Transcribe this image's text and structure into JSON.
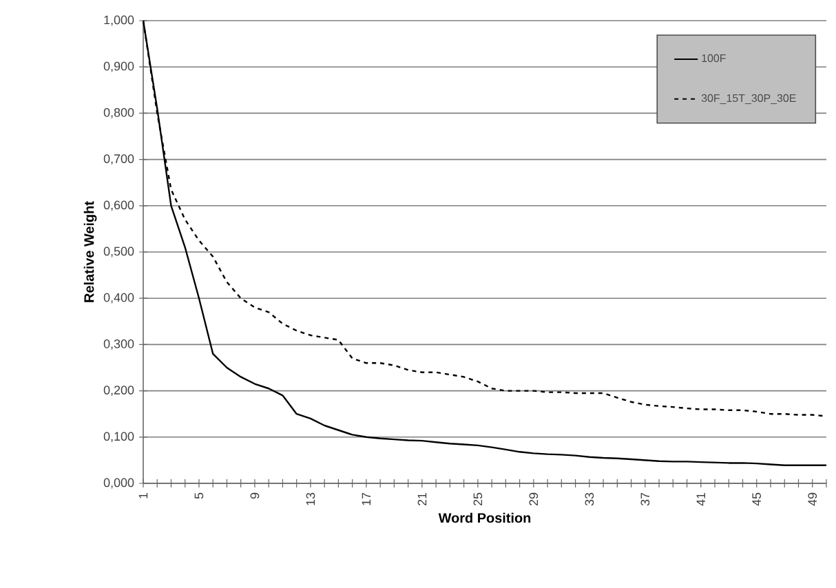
{
  "chart_data": {
    "type": "line",
    "xlabel": "Word Position",
    "ylabel": "Relative Weight",
    "categories": [
      "1",
      null,
      null,
      null,
      "5",
      null,
      null,
      null,
      "9",
      null,
      null,
      null,
      "13",
      null,
      null,
      null,
      "17",
      null,
      null,
      null,
      "21",
      null,
      null,
      null,
      "25",
      null,
      null,
      null,
      "29",
      null,
      null,
      null,
      "33",
      null,
      null,
      null,
      "37",
      null,
      null,
      null,
      "41",
      null,
      null,
      null,
      "45",
      null,
      null,
      null,
      "49",
      null
    ],
    "series": [
      {
        "name": "100F",
        "color": "#000000",
        "line_style": "solid",
        "values": [
          1.0,
          0.81,
          0.6,
          0.51,
          0.4,
          0.28,
          0.25,
          0.23,
          0.215,
          0.205,
          0.19,
          0.15,
          0.14,
          0.125,
          0.115,
          0.105,
          0.1,
          0.097,
          0.095,
          0.093,
          0.092,
          0.089,
          0.086,
          0.084,
          0.082,
          0.078,
          0.073,
          0.068,
          0.065,
          0.063,
          0.062,
          0.06,
          0.057,
          0.055,
          0.054,
          0.052,
          0.05,
          0.048,
          0.047,
          0.047,
          0.046,
          0.045,
          0.044,
          0.044,
          0.043,
          0.041,
          0.039,
          0.039,
          0.039,
          0.039
        ]
      },
      {
        "name": "30F_15T_30P_30E",
        "color": "#000000",
        "line_style": "dashed",
        "values": [
          1.0,
          0.8,
          0.635,
          0.57,
          0.525,
          0.49,
          0.435,
          0.4,
          0.38,
          0.37,
          0.345,
          0.33,
          0.32,
          0.315,
          0.31,
          0.27,
          0.26,
          0.26,
          0.255,
          0.245,
          0.24,
          0.24,
          0.235,
          0.23,
          0.22,
          0.205,
          0.2,
          0.2,
          0.2,
          0.197,
          0.197,
          0.195,
          0.195,
          0.195,
          0.185,
          0.176,
          0.17,
          0.167,
          0.165,
          0.162,
          0.16,
          0.16,
          0.158,
          0.158,
          0.155,
          0.15,
          0.15,
          0.148,
          0.148,
          0.145
        ]
      }
    ],
    "ylim": [
      0,
      1
    ],
    "yticks": [
      {
        "value": 0,
        "label": "0,000"
      },
      {
        "value": 0.1,
        "label": "0,100"
      },
      {
        "value": 0.2,
        "label": "0,200"
      },
      {
        "value": 0.3,
        "label": "0,300"
      },
      {
        "value": 0.4,
        "label": "0,400"
      },
      {
        "value": 0.5,
        "label": "0,500"
      },
      {
        "value": 0.6,
        "label": "0,600"
      },
      {
        "value": 0.7,
        "label": "0,700"
      },
      {
        "value": 0.8,
        "label": "0,800"
      },
      {
        "value": 0.9,
        "label": "0,900"
      },
      {
        "value": 1.0,
        "label": "1,000"
      }
    ],
    "grid": "y",
    "legend": "top right"
  }
}
